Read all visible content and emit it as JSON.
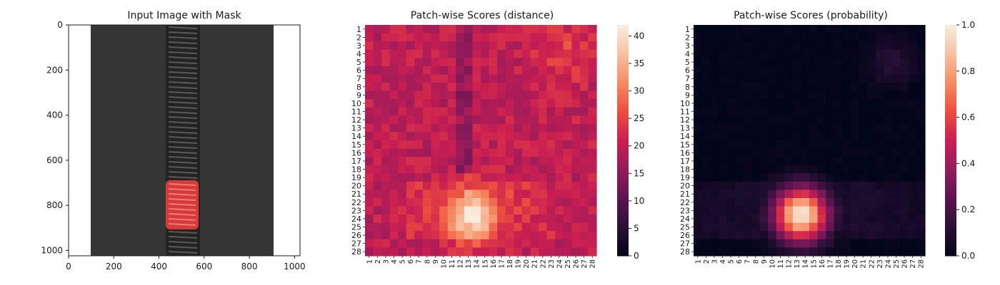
{
  "chart_data": [
    {
      "type": "image",
      "title": "Input Image with Mask",
      "xlim": [
        0,
        1024
      ],
      "ylim": [
        1024,
        0
      ],
      "xticks": [
        "0",
        "200",
        "400",
        "600",
        "800",
        "1000"
      ],
      "yticks": [
        "0",
        "200",
        "400",
        "600",
        "800",
        "1000"
      ],
      "content": {
        "object": "zipper",
        "fabric_x_range": [
          100,
          900
        ],
        "zipper_teeth_x_range": [
          430,
          570
        ],
        "mask_region": {
          "x": [
            430,
            575
          ],
          "y": [
            690,
            905
          ]
        },
        "colors": {
          "fabric": "#3a3a3a",
          "teeth": "#222222",
          "mask": "#d83a3a"
        }
      }
    },
    {
      "type": "heatmap",
      "title": "Patch-wise Scores (distance)",
      "rows": 28,
      "cols": 28,
      "tick_labels": [
        "1",
        "2",
        "3",
        "4",
        "5",
        "6",
        "7",
        "8",
        "9",
        "10",
        "11",
        "12",
        "13",
        "14",
        "15",
        "16",
        "17",
        "18",
        "19",
        "20",
        "21",
        "22",
        "23",
        "24",
        "25",
        "26",
        "27",
        "28"
      ],
      "colorbar": {
        "min": 0,
        "max": 42,
        "ticks": [
          "0",
          "5",
          "10",
          "15",
          "20",
          "25",
          "30",
          "35",
          "40"
        ]
      },
      "colormap": "rocket",
      "base_value": 20,
      "features": [
        {
          "name": "anomaly-hotspot",
          "center_row": 23.5,
          "center_col": 13.5,
          "peak": 42,
          "radius": 2.3
        },
        {
          "name": "top-right-bright",
          "center_row": 4,
          "center_col": 24.5,
          "peak": 25,
          "radius": 2.5
        },
        {
          "name": "dark-vertical-stripe",
          "col": 12.5,
          "rows": [
            1,
            18
          ],
          "value": 16
        },
        {
          "name": "bottom-band",
          "rows": [
            20,
            26
          ],
          "value": 25
        }
      ]
    },
    {
      "type": "heatmap",
      "title": "Patch-wise Scores (probability)",
      "rows": 28,
      "cols": 28,
      "tick_labels": [
        "1",
        "2",
        "3",
        "4",
        "5",
        "6",
        "7",
        "8",
        "9",
        "10",
        "11",
        "12",
        "13",
        "14",
        "15",
        "16",
        "17",
        "18",
        "19",
        "20",
        "21",
        "22",
        "23",
        "24",
        "25",
        "26",
        "27",
        "28"
      ],
      "colorbar": {
        "min": 0.0,
        "max": 1.0,
        "ticks": [
          "0.0",
          "0.2",
          "0.4",
          "0.6",
          "0.8",
          "1.0"
        ]
      },
      "colormap": "rocket",
      "base_value": 0.0,
      "features": [
        {
          "name": "anomaly-hotspot",
          "center_row": 23.5,
          "center_col": 13.5,
          "peak": 1.0,
          "radius": 2.3
        },
        {
          "name": "bottom-band",
          "rows": [
            20,
            26
          ],
          "value": 0.08
        },
        {
          "name": "top-right-faint",
          "center_row": 5,
          "center_col": 24.5,
          "peak": 0.12,
          "radius": 2
        }
      ]
    }
  ],
  "colors": {
    "rocket": [
      "#03051a",
      "#2a1036",
      "#5c1450",
      "#931c5b",
      "#c91e52",
      "#eb4c3e",
      "#f58a5f",
      "#f7bfa0",
      "#faebdd"
    ]
  }
}
